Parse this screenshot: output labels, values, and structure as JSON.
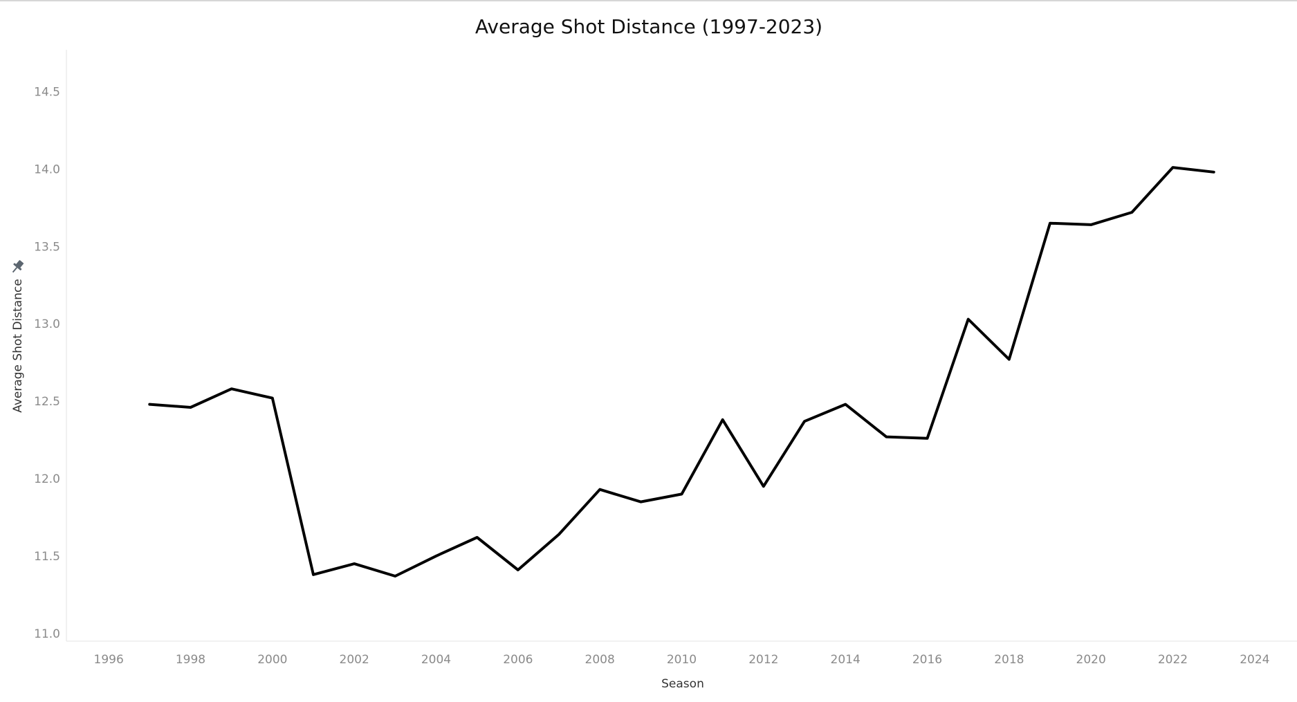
{
  "chart_data": {
    "type": "line",
    "title": "Average Shot Distance (1997-2023)",
    "xlabel": "Season",
    "ylabel": "Average Shot Distance",
    "x_ticks": [
      "1996",
      "1998",
      "2000",
      "2002",
      "2004",
      "2006",
      "2008",
      "2010",
      "2012",
      "2014",
      "2016",
      "2018",
      "2020",
      "2022",
      "2024"
    ],
    "y_ticks": [
      "11.0",
      "11.5",
      "12.0",
      "12.5",
      "13.0",
      "13.5",
      "14.0",
      "14.5"
    ],
    "xlim": [
      1995,
      2025
    ],
    "ylim": [
      10.95,
      14.77
    ],
    "grid": false,
    "line_color": "#000000",
    "series": [
      {
        "x": [
          1997,
          1998,
          1999,
          2000,
          2001,
          2002,
          2003,
          2004,
          2005,
          2006,
          2007,
          2008,
          2009,
          2010,
          2011,
          2012,
          2013,
          2014,
          2015,
          2016,
          2017,
          2018,
          2019,
          2020,
          2021,
          2022,
          2023
        ],
        "values": [
          12.48,
          12.46,
          12.58,
          12.52,
          11.38,
          11.45,
          11.37,
          11.5,
          11.62,
          11.41,
          11.64,
          11.93,
          11.85,
          11.9,
          12.38,
          11.95,
          12.37,
          12.48,
          12.27,
          12.26,
          13.03,
          12.77,
          13.65,
          13.64,
          13.72,
          14.01,
          13.98
        ]
      }
    ]
  }
}
